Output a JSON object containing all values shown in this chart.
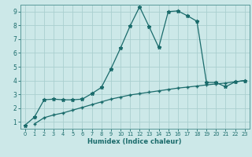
{
  "xlabel": "Humidex (Indice chaleur)",
  "bg_color": "#cce8e8",
  "grid_color": "#aacfcf",
  "line_color": "#1a6b6b",
  "spine_color": "#5a9a9a",
  "xlim": [
    -0.5,
    23.5
  ],
  "ylim": [
    0.5,
    9.5
  ],
  "xticks": [
    0,
    1,
    2,
    3,
    4,
    5,
    6,
    7,
    8,
    9,
    10,
    11,
    12,
    13,
    14,
    15,
    16,
    17,
    18,
    19,
    20,
    21,
    22,
    23
  ],
  "yticks": [
    1,
    2,
    3,
    4,
    5,
    6,
    7,
    8,
    9
  ],
  "line1_x": [
    0,
    1,
    2,
    3,
    4,
    5,
    6,
    7,
    8,
    9,
    10,
    11,
    12,
    13,
    14,
    15,
    16,
    17,
    18,
    19,
    20,
    21,
    22,
    23
  ],
  "line1_y": [
    0.75,
    1.35,
    2.6,
    2.65,
    2.6,
    2.6,
    2.65,
    3.05,
    3.5,
    4.85,
    6.35,
    7.95,
    9.35,
    7.9,
    6.4,
    9.0,
    9.05,
    8.7,
    8.3,
    3.85,
    3.85,
    3.55,
    3.9,
    4.0
  ],
  "line2_x": [
    1,
    2,
    3,
    4,
    5,
    6,
    7,
    8,
    9,
    10,
    11,
    12,
    13,
    14,
    15,
    16,
    17,
    18,
    19,
    20,
    21,
    22,
    23
  ],
  "line2_y": [
    0.85,
    1.3,
    1.5,
    1.65,
    1.85,
    2.05,
    2.25,
    2.45,
    2.65,
    2.8,
    2.95,
    3.05,
    3.15,
    3.25,
    3.35,
    3.45,
    3.52,
    3.6,
    3.68,
    3.75,
    3.82,
    3.9,
    4.0
  ]
}
